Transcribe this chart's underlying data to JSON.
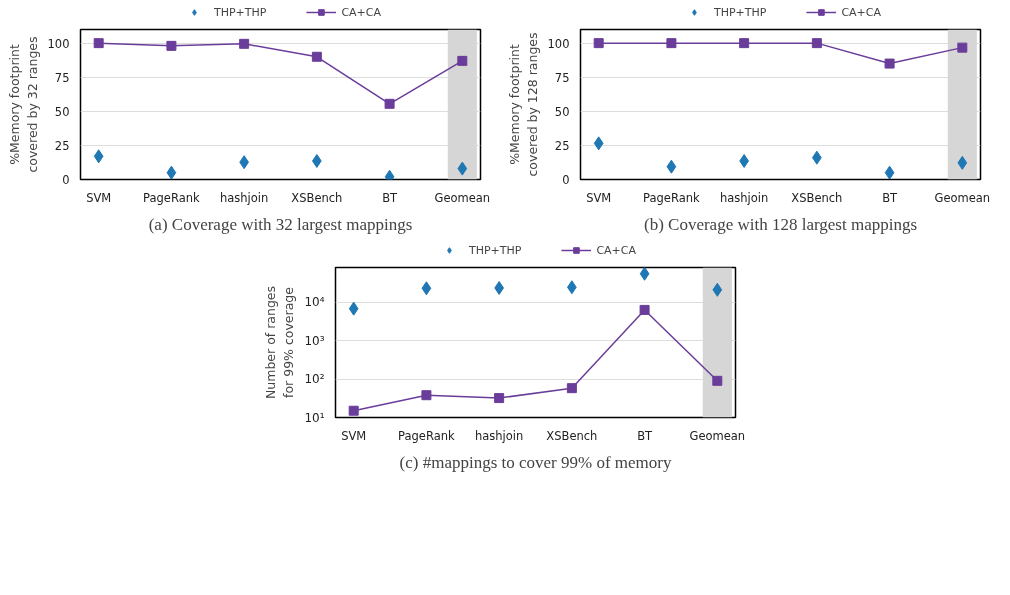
{
  "chart_data": [
    {
      "type": "line",
      "title": "(a) Coverage with 32 largest mappings",
      "ylabel": "%Memory footprint\ncovered by 32 ranges",
      "categories": [
        "SVM",
        "PageRank",
        "hashjoin",
        "XSBench",
        "BT",
        "Geomean"
      ],
      "ylim": [
        0,
        110
      ],
      "yticks": [
        0,
        25,
        50,
        75,
        100
      ],
      "grid": "y",
      "legend": "top",
      "bands": [
        {
          "axis": "x",
          "from": "Geomean",
          "to": "Geomean",
          "color": "#d6d6d6"
        }
      ],
      "series": [
        {
          "name": "THP+THP",
          "type": "scatter",
          "marker": "diamond",
          "color": "#1f77b4",
          "values": [
            17,
            5,
            12.7,
            13.6,
            2,
            8
          ]
        },
        {
          "name": "CA+CA",
          "type": "line",
          "marker": "square",
          "color": "#6a3d9a",
          "values": [
            100,
            98,
            99.5,
            90,
            55.5,
            87
          ]
        }
      ]
    },
    {
      "type": "line",
      "title": "(b) Coverage with 128 largest mappings",
      "ylabel": "%Memory footprint\ncovered by 128 ranges",
      "categories": [
        "SVM",
        "PageRank",
        "hashjoin",
        "XSBench",
        "BT",
        "Geomean"
      ],
      "ylim": [
        0,
        110
      ],
      "yticks": [
        0,
        25,
        50,
        75,
        100
      ],
      "grid": "y",
      "legend": "top",
      "bands": [
        {
          "axis": "x",
          "from": "Geomean",
          "to": "Geomean",
          "color": "#d6d6d6"
        }
      ],
      "series": [
        {
          "name": "THP+THP",
          "type": "scatter",
          "marker": "diamond",
          "color": "#1f77b4",
          "values": [
            26.5,
            9.4,
            13.6,
            16,
            5,
            12.2
          ]
        },
        {
          "name": "CA+CA",
          "type": "line",
          "marker": "square",
          "color": "#6a3d9a",
          "values": [
            100,
            100,
            100,
            100,
            85,
            96.7
          ]
        }
      ]
    },
    {
      "type": "line",
      "title": "(c) #mappings to cover 99% of memory",
      "ylabel": "Number of ranges\nfor 99% coverage",
      "categories": [
        "SVM",
        "PageRank",
        "hashjoin",
        "XSBench",
        "BT",
        "Geomean"
      ],
      "log": true,
      "ylim": [
        10,
        80000
      ],
      "yticks": [
        {
          "value": 10,
          "label": "10¹"
        },
        {
          "value": 100,
          "label": "10²"
        },
        {
          "value": 1000,
          "label": "10³"
        },
        {
          "value": 10000,
          "label": "10⁴"
        }
      ],
      "grid": "y",
      "legend": "top",
      "bands": [
        {
          "axis": "x",
          "from": "Geomean",
          "to": "Geomean",
          "color": "#d6d6d6"
        }
      ],
      "series": [
        {
          "name": "THP+THP",
          "type": "scatter",
          "marker": "diamond",
          "color": "#1f77b4",
          "values": [
            6800,
            23000,
            23500,
            24500,
            55000,
            21000
          ]
        },
        {
          "name": "CA+CA",
          "type": "line",
          "marker": "square",
          "color": "#6a3d9a",
          "values": [
            15,
            38,
            32,
            58,
            6300,
            90
          ]
        }
      ]
    }
  ]
}
